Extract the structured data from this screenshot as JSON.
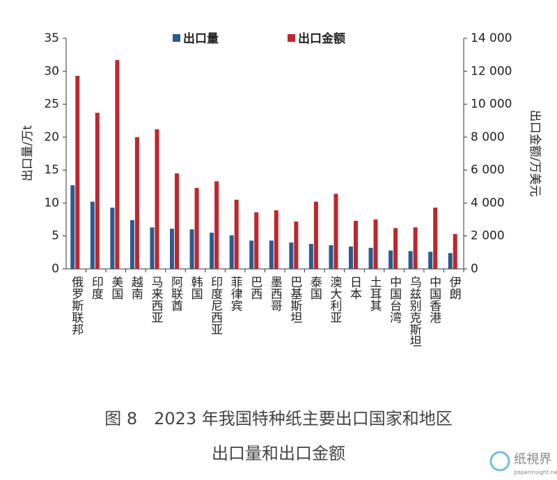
{
  "chart_data": {
    "type": "bar",
    "caption": [
      "图 8　2023 年我国特种纸主要出口国家和地区",
      "出口量和出口金额"
    ],
    "ylabel": "出口量/万t",
    "y2label": "出口金额/万美元",
    "categories": [
      "俄罗斯联邦",
      "印度",
      "美国",
      "越南",
      "马来西亚",
      "阿联酋",
      "韩国",
      "印度尼西亚",
      "菲律宾",
      "巴西",
      "墨西哥",
      "巴基斯坦",
      "泰国",
      "澳大利亚",
      "日本",
      "土耳其",
      "中国台湾",
      "乌兹别克斯坦",
      "中国香港",
      "伊朗"
    ],
    "series": [
      {
        "name": "出口量",
        "color": "#2e5a8c",
        "values": [
          12.7,
          10.2,
          9.3,
          7.4,
          6.3,
          6.1,
          6.0,
          5.5,
          5.1,
          4.3,
          4.3,
          4.0,
          3.8,
          3.6,
          3.4,
          3.2,
          2.8,
          2.7,
          2.6,
          2.4
        ]
      },
      {
        "name": "出口金额",
        "color": "#c0262d",
        "axis": "y2",
        "values": [
          11720,
          9480,
          12680,
          8000,
          8480,
          5800,
          4920,
          5320,
          4200,
          3440,
          3560,
          2880,
          4080,
          4560,
          2920,
          3000,
          2480,
          2520,
          3720,
          2120
        ]
      }
    ],
    "ylim": [
      0,
      35
    ],
    "yticks": [
      0,
      5,
      10,
      15,
      20,
      25,
      30,
      35
    ],
    "y2lim": [
      0,
      14000
    ],
    "y2ticks": [
      0,
      {
        "value": 2000,
        "label": "2 000"
      },
      {
        "value": 4000,
        "label": "4 000"
      },
      {
        "value": 6000,
        "label": "6 000"
      },
      {
        "value": 8000,
        "label": "8 000"
      },
      {
        "value": 10000,
        "label": "10 000"
      },
      {
        "value": 12000,
        "label": "12 000"
      },
      {
        "value": 14000,
        "label": "14 000"
      }
    ],
    "legend": "top",
    "watermark": [
      "纸視界",
      "paperinsight.net"
    ]
  }
}
